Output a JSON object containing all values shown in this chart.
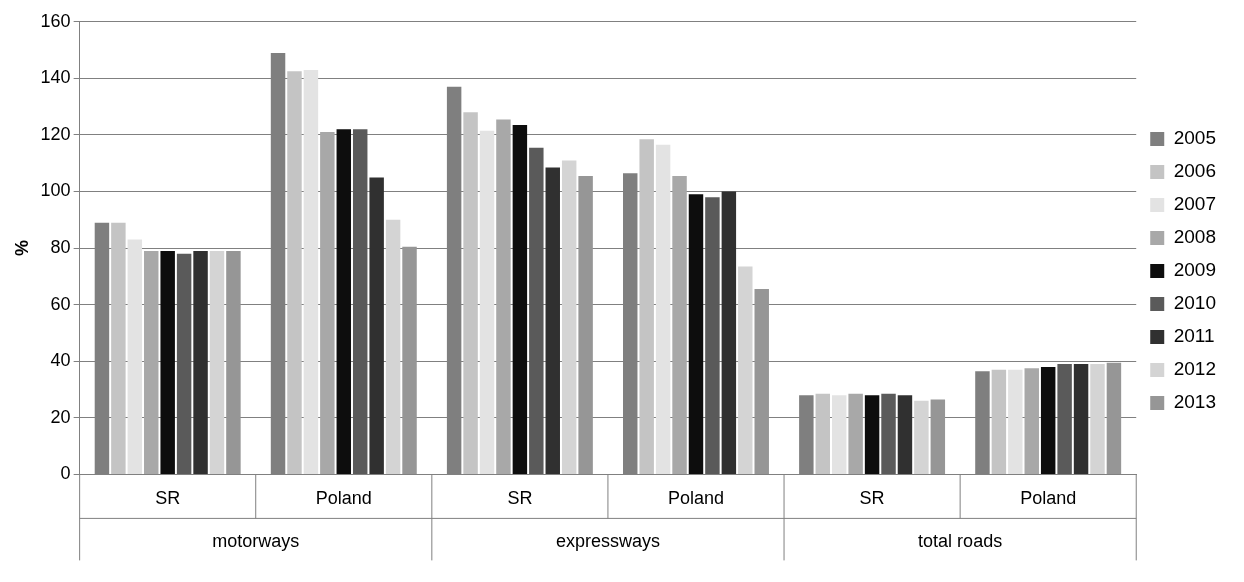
{
  "chart_data": {
    "type": "bar",
    "ylabel": "%",
    "categories": [
      "SR",
      "Poland",
      "SR",
      "Poland",
      "SR",
      "Poland"
    ],
    "annotations": [
      "motorways",
      "expressways",
      "total roads"
    ],
    "series": [
      {
        "name": "2005",
        "color": "#7f7f7f",
        "values": [
          89,
          149,
          137,
          106.5,
          28,
          36.5
        ]
      },
      {
        "name": "2006",
        "color": "#c4c4c4",
        "values": [
          89,
          142.5,
          128,
          118.5,
          28.5,
          37
        ]
      },
      {
        "name": "2007",
        "color": "#e3e3e3",
        "values": [
          83,
          143,
          121.5,
          116.5,
          28,
          37
        ]
      },
      {
        "name": "2008",
        "color": "#a8a8a8",
        "values": [
          79,
          121,
          125.5,
          105.5,
          28.5,
          37.5
        ]
      },
      {
        "name": "2009",
        "color": "#0d0d0d",
        "values": [
          79,
          122,
          123.5,
          99,
          28,
          38
        ]
      },
      {
        "name": "2010",
        "color": "#5a5a5a",
        "values": [
          78,
          122,
          115.5,
          98,
          28.5,
          39
        ]
      },
      {
        "name": "2011",
        "color": "#303030",
        "values": [
          79,
          105,
          108.5,
          100,
          28,
          39
        ]
      },
      {
        "name": "2012",
        "color": "#d4d4d4",
        "values": [
          79,
          90,
          111,
          73.5,
          26,
          39
        ]
      },
      {
        "name": "2013",
        "color": "#969696",
        "values": [
          79,
          80.5,
          105.5,
          65.5,
          26.5,
          39.5
        ]
      }
    ],
    "ylim": [
      0,
      160
    ],
    "yticks": [
      0,
      20,
      40,
      60,
      80,
      100,
      120,
      140,
      160
    ],
    "grid": "y",
    "legend": "right"
  }
}
